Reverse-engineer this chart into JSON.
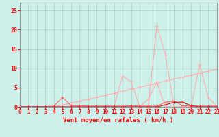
{
  "title": "",
  "xlabel": "Vent moyen/en rafales ( km/h )",
  "bg_color": "#cdf0eb",
  "grid_color": "#aacccc",
  "x_values": [
    0,
    1,
    2,
    3,
    4,
    5,
    6,
    7,
    8,
    9,
    10,
    11,
    12,
    13,
    14,
    15,
    16,
    17,
    18,
    19,
    20,
    21,
    22,
    23
  ],
  "line_rafales_y": [
    0,
    0,
    0,
    0,
    0,
    0,
    0,
    0,
    0,
    0,
    0,
    0,
    0,
    0,
    0,
    0,
    21,
    13.5,
    0,
    0,
    0,
    11,
    2.5,
    0
  ],
  "line_moyen_y": [
    0,
    0,
    0,
    0,
    0,
    0,
    0,
    0,
    0,
    0,
    0,
    0,
    8,
    6.5,
    0,
    2,
    6.5,
    0,
    0,
    0,
    0,
    0,
    0,
    0
  ],
  "line_trend_y": [
    0,
    0,
    0,
    0,
    0,
    0.5,
    1.0,
    1.5,
    2.0,
    2.5,
    3.0,
    3.5,
    4.0,
    4.6,
    5.1,
    5.6,
    6.1,
    6.7,
    7.2,
    7.7,
    8.2,
    8.7,
    9.3,
    9.8
  ],
  "line_low_y": [
    0,
    0,
    0,
    0,
    0.2,
    2.5,
    0.3,
    0.3,
    0.2,
    0.2,
    0.2,
    0.2,
    0.2,
    0.3,
    0.2,
    0.2,
    0.2,
    1.2,
    1.5,
    0.3,
    0.2,
    0.2,
    0.2,
    0.2
  ],
  "line_dark_y": [
    0,
    0,
    0,
    0,
    0,
    0,
    0,
    0,
    0,
    0,
    0,
    0,
    0,
    0,
    0,
    0,
    0,
    0.5,
    1.2,
    1.2,
    0.3,
    0,
    0,
    0
  ],
  "color_rafales": "#ffaaaa",
  "color_moyen": "#ffaaaa",
  "color_trend": "#ffaaaa",
  "color_low": "#ff6666",
  "color_dark": "#cc2222",
  "xlim": [
    0,
    23
  ],
  "ylim": [
    0,
    27
  ],
  "yticks": [
    0,
    5,
    10,
    15,
    20,
    25
  ],
  "xticks": [
    0,
    1,
    2,
    3,
    4,
    5,
    6,
    7,
    8,
    9,
    10,
    11,
    12,
    13,
    14,
    15,
    16,
    17,
    18,
    19,
    20,
    21,
    22,
    23
  ],
  "xlabel_fontsize": 6.5,
  "tick_fontsize": 5.5
}
